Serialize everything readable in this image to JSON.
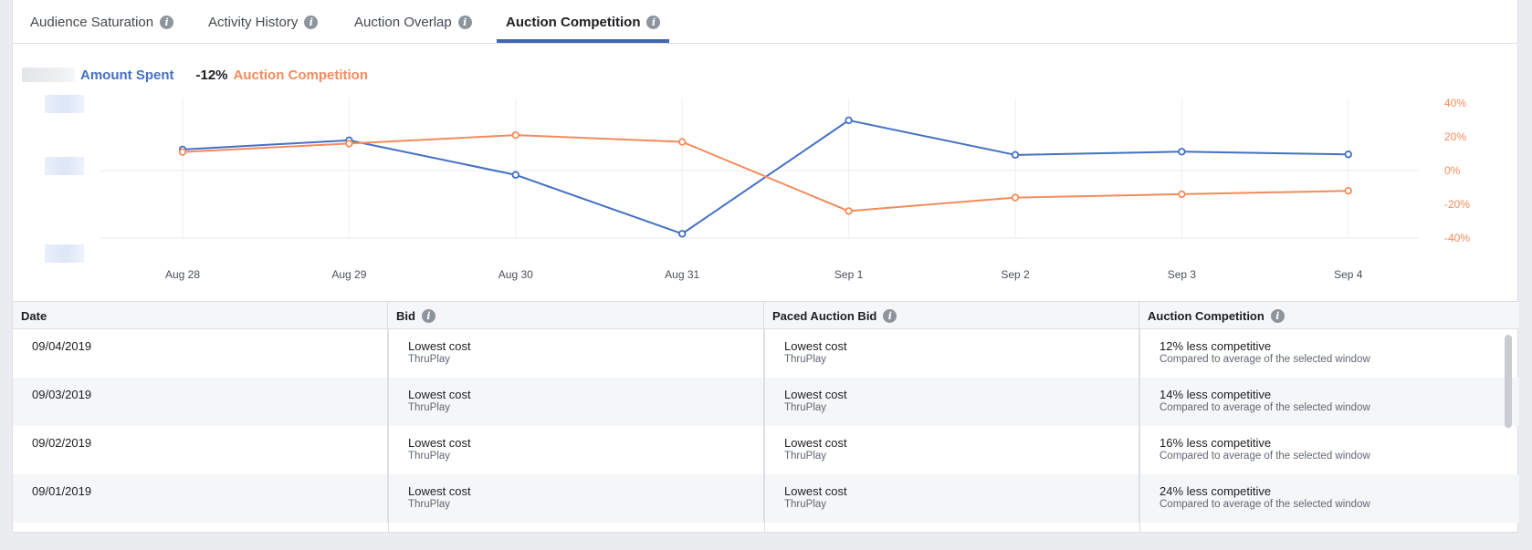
{
  "tabs": [
    {
      "label": "Audience Saturation",
      "active": false
    },
    {
      "label": "Activity History",
      "active": false
    },
    {
      "label": "Auction Overlap",
      "active": false
    },
    {
      "label": "Auction Competition",
      "active": true
    }
  ],
  "legend": {
    "amount_label": "Amount Spent",
    "pct_change": "-12%",
    "auction_label": "Auction Competition"
  },
  "colors": {
    "amount_series": "#4470c4",
    "auction_series": "#f38b5c",
    "tab_accent": "#4267b2"
  },
  "chart_data": {
    "type": "line",
    "categories": [
      "Aug 28",
      "Aug 29",
      "Aug 30",
      "Aug 31",
      "Sep 1",
      "Sep 2",
      "Sep 3",
      "Sep 4"
    ],
    "series": [
      {
        "name": "Amount Spent",
        "axis": "left",
        "values": [
          0.64,
          0.81,
          0.17,
          -0.92,
          1.18,
          0.54,
          0.6,
          0.55
        ],
        "y_tick_labels_hidden": true
      },
      {
        "name": "Auction Competition",
        "axis": "right",
        "unit": "%",
        "values": [
          11,
          16,
          21,
          17,
          -24,
          -16,
          -14,
          -12
        ]
      }
    ],
    "y_right": {
      "ylim": [
        -40,
        40
      ],
      "ticks": [
        "40%",
        "20%",
        "0%",
        "-20%",
        "-40%"
      ]
    },
    "y_left": {
      "ylim": [
        -1,
        1.5
      ]
    },
    "grid": true,
    "legend_position": "top-left"
  },
  "table": {
    "columns": [
      {
        "label": "Date",
        "info": false
      },
      {
        "label": "Bid",
        "info": true
      },
      {
        "label": "Paced Auction Bid",
        "info": true
      },
      {
        "label": "Auction Competition",
        "info": true
      }
    ],
    "rows": [
      {
        "date": "09/04/2019",
        "bid": "Lowest cost",
        "bid_sub": "ThruPlay",
        "paced": "Lowest cost",
        "paced_sub": "ThruPlay",
        "comp": "12% less competitive",
        "comp_sub": "Compared to average of the selected window"
      },
      {
        "date": "09/03/2019",
        "bid": "Lowest cost",
        "bid_sub": "ThruPlay",
        "paced": "Lowest cost",
        "paced_sub": "ThruPlay",
        "comp": "14% less competitive",
        "comp_sub": "Compared to average of the selected window"
      },
      {
        "date": "09/02/2019",
        "bid": "Lowest cost",
        "bid_sub": "ThruPlay",
        "paced": "Lowest cost",
        "paced_sub": "ThruPlay",
        "comp": "16% less competitive",
        "comp_sub": "Compared to average of the selected window"
      },
      {
        "date": "09/01/2019",
        "bid": "Lowest cost",
        "bid_sub": "ThruPlay",
        "paced": "Lowest cost",
        "paced_sub": "ThruPlay",
        "comp": "24% less competitive",
        "comp_sub": "Compared to average of the selected window"
      }
    ]
  }
}
